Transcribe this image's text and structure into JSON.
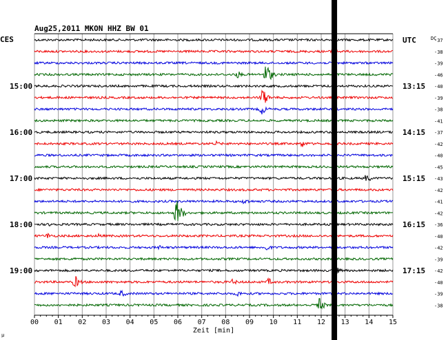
{
  "chart_data": {
    "type": "line",
    "title": "Aug25,2011   MKON HHZ BW 01",
    "xlabel": "Zeit [min]",
    "ylabel": "",
    "left_axis_label": "CES",
    "right_axis_label": "UTC",
    "dc_label": "DC",
    "xlim": [
      0,
      15
    ],
    "x_tick_labels": [
      "00",
      "01",
      "02",
      "03",
      "04",
      "05",
      "06",
      "07",
      "08",
      "09",
      "10",
      "11",
      "12",
      "13",
      "14",
      "15"
    ],
    "grid": true,
    "trace_colors": [
      "#000000",
      "#ee0000",
      "#0000dd",
      "#006600"
    ],
    "left_time_labels": [
      {
        "row": 4,
        "text": "15:00"
      },
      {
        "row": 8,
        "text": "16:00"
      },
      {
        "row": 12,
        "text": "17:00"
      },
      {
        "row": 16,
        "text": "18:00"
      },
      {
        "row": 20,
        "text": "19:00"
      }
    ],
    "right_time_labels": [
      {
        "row": 0,
        "text": "UTC"
      },
      {
        "row": 4,
        "text": "13:15"
      },
      {
        "row": 8,
        "text": "14:15"
      },
      {
        "row": 12,
        "text": "15:15"
      },
      {
        "row": 16,
        "text": "16:15"
      },
      {
        "row": 20,
        "text": "17:15"
      }
    ],
    "dc_offsets": [
      "-37",
      "-38",
      "-39",
      "-46",
      "-40",
      "-39",
      "-38",
      "-41",
      "-37",
      "-42",
      "-40",
      "-45",
      "-43",
      "-42",
      "-41",
      "-42",
      "-36",
      "-40",
      "-42",
      "-39",
      "-42",
      "-40",
      "-39",
      "-38"
    ],
    "events": [
      {
        "row": 1,
        "x": 12.5,
        "amp": 5
      },
      {
        "row": 3,
        "x": 8.5,
        "amp": 6
      },
      {
        "row": 3,
        "x": 9.7,
        "amp": 18
      },
      {
        "row": 5,
        "x": 9.55,
        "amp": 14
      },
      {
        "row": 6,
        "x": 9.5,
        "amp": 9
      },
      {
        "row": 9,
        "x": 7.6,
        "amp": 4
      },
      {
        "row": 9,
        "x": 11.2,
        "amp": 6
      },
      {
        "row": 12,
        "x": 13.9,
        "amp": 7
      },
      {
        "row": 14,
        "x": 8.8,
        "amp": 6
      },
      {
        "row": 15,
        "x": 5.95,
        "amp": 22
      },
      {
        "row": 16,
        "x": 0.7,
        "amp": 5
      },
      {
        "row": 17,
        "x": 0.55,
        "amp": 5
      },
      {
        "row": 17,
        "x": 2.7,
        "amp": 4
      },
      {
        "row": 18,
        "x": 5.2,
        "amp": 4
      },
      {
        "row": 18,
        "x": 9.7,
        "amp": 6
      },
      {
        "row": 19,
        "x": 1.6,
        "amp": 4
      },
      {
        "row": 20,
        "x": 12.55,
        "amp": 9
      },
      {
        "row": 21,
        "x": 1.7,
        "amp": 10
      },
      {
        "row": 21,
        "x": 8.3,
        "amp": 5
      },
      {
        "row": 21,
        "x": 9.8,
        "amp": 6
      },
      {
        "row": 22,
        "x": 3.65,
        "amp": 6
      },
      {
        "row": 22,
        "x": 8.5,
        "amp": 5
      },
      {
        "row": 23,
        "x": 11.9,
        "amp": 12
      }
    ],
    "thick_marker_x": 12.55
  },
  "footer_mark": "μ"
}
